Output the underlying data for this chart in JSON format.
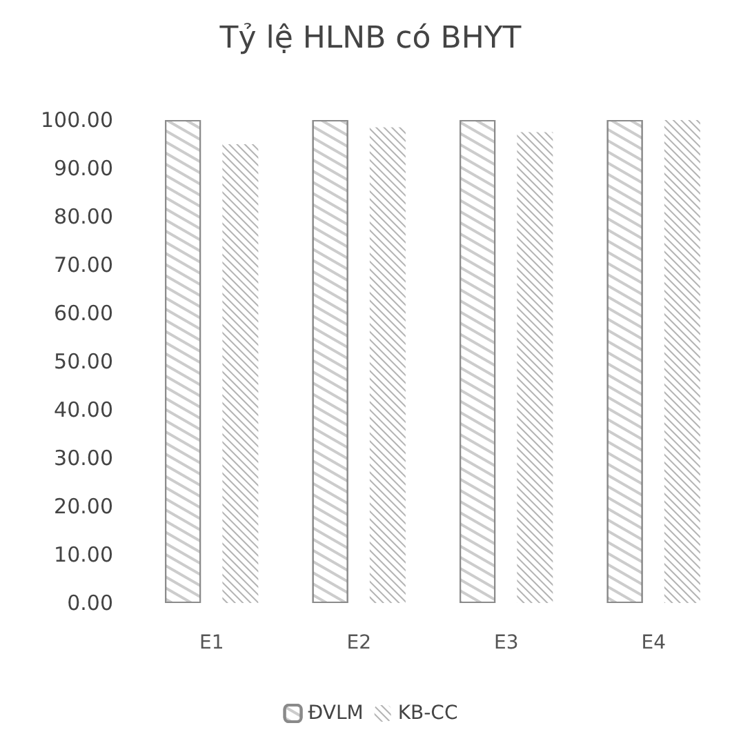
{
  "chart_data": {
    "type": "bar",
    "title": "Tỷ lệ HLNB có BHYT",
    "categories": [
      "E1",
      "E2",
      "E3",
      "E4"
    ],
    "series": [
      {
        "name": "ĐVLM",
        "color": "#ffffff",
        "values": [
          100,
          100,
          100,
          100
        ]
      },
      {
        "name": "KB-CC",
        "color": "#7f7f7f",
        "values": [
          95,
          98.5,
          97.5,
          100
        ]
      }
    ],
    "ylim": [
      0,
      100
    ],
    "yticks": [
      {
        "value": 0,
        "label": "0.00"
      },
      {
        "value": 10,
        "label": "10.00"
      },
      {
        "value": 20,
        "label": "20.00"
      },
      {
        "value": 30,
        "label": "30.00"
      },
      {
        "value": 40,
        "label": "40.00"
      },
      {
        "value": 50,
        "label": "50.00"
      },
      {
        "value": 60,
        "label": "60.00"
      },
      {
        "value": 70,
        "label": "70.00"
      },
      {
        "value": 80,
        "label": "80.00"
      },
      {
        "value": 90,
        "label": "90.00"
      },
      {
        "value": 100,
        "label": "100.00"
      }
    ],
    "grid": false,
    "legend": "bottom"
  }
}
